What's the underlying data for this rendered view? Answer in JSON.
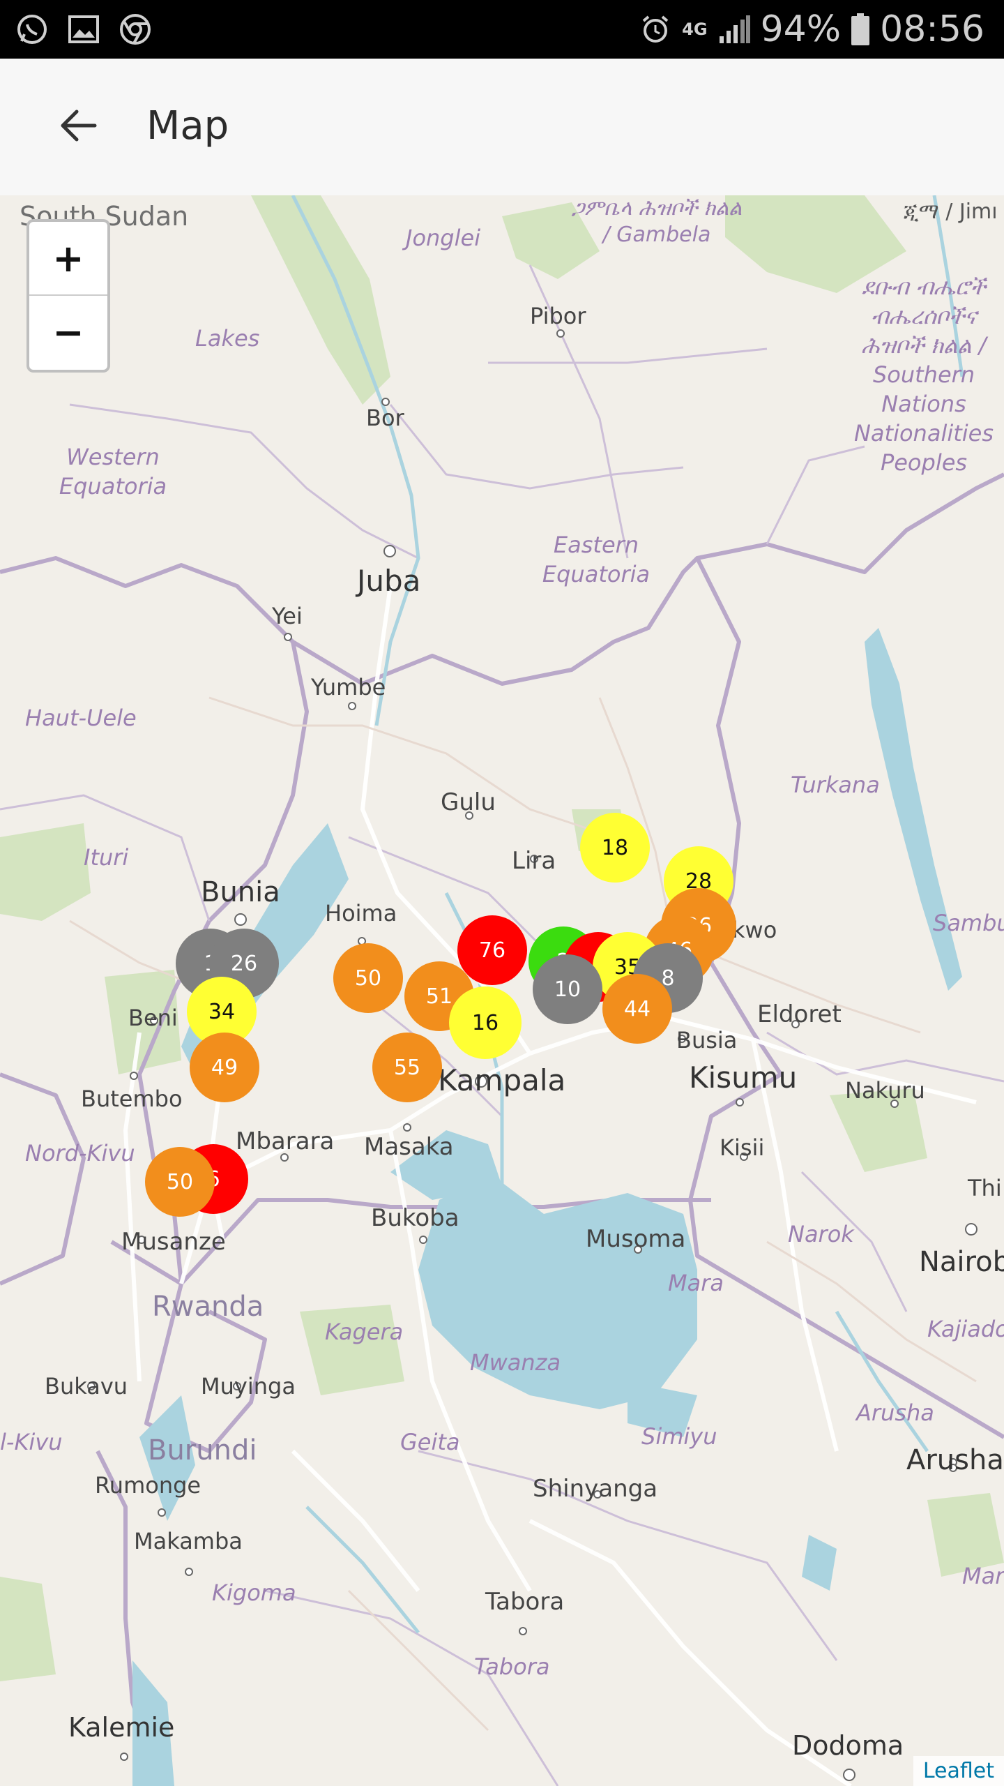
{
  "status_bar": {
    "left_icons": [
      "whatsapp-icon",
      "gallery-icon",
      "chrome-icon"
    ],
    "network": "4G",
    "battery": "94%",
    "time": "08:56"
  },
  "app_bar": {
    "title": "Map",
    "back_icon": "arrow-left-icon"
  },
  "map": {
    "zoom_in_label": "+",
    "zoom_out_label": "−",
    "attribution": "Leaflet",
    "colors": {
      "land": "#f2efe9",
      "water": "#aad3df",
      "forest": "#c8dcb0",
      "border": "#b9a8c9",
      "road": "#ffffff",
      "marker_red": "#ff0000",
      "marker_orange": "#f28e1c",
      "marker_yellow": "#ffff33",
      "marker_green": "#3bdc0f",
      "marker_gray": "#7f7f7f"
    },
    "places": {
      "south_sudan": "South Sudan",
      "gambela": "ጋምቤላ ሕዝቦች ክልል / Gambela",
      "amharic_ji": "ጂማ / Jimı",
      "jonglei": "Jonglei",
      "pibor": "Pibor",
      "snnp": "ደቡብ ብሔሮች ብሔረሰቦችና ሕዝቦች ክልል / Southern Nations Nationalities Peoples",
      "lakes": "Lakes",
      "bor": "Bor",
      "western_equatoria": "Western Equatoria",
      "juba": "Juba",
      "eastern_equatoria": "Eastern Equatoria",
      "yei": "Yei",
      "yumbe": "Yumbe",
      "haut_uele": "Haut-Uele",
      "gulu": "Gulu",
      "turkana": "Turkana",
      "ituri": "Ituri",
      "lira": "Lira",
      "bunia": "Bunia",
      "hoima": "Hoima",
      "kwo": "kwo",
      "sambu": "Sambu",
      "beni": "Beni",
      "eldoret": "Eldoret",
      "busia": "Busia",
      "kisumu": "Kisumu",
      "nakuru": "Nakuru",
      "butembo": "Butembo",
      "kampala": "Kampala",
      "kisii": "Kisii",
      "mbarara": "Mbarara",
      "masaka": "Masaka",
      "nord_kivu": "Nord-Kivu",
      "thi": "Thi",
      "bukoba": "Bukoba",
      "musoma": "Musoma",
      "narok": "Narok",
      "nairobi": "Nairob",
      "musanze": "Musanze",
      "mara": "Mara",
      "rwanda": "Rwanda",
      "kagera": "Kagera",
      "kajiado": "Kajiado",
      "mwanza": "Mwanza",
      "bukavu": "Bukavu",
      "muyinga": "Muyinga",
      "arusha_region": "Arusha",
      "sud_kivu": "l-Kivu",
      "burundi": "Burundi",
      "geita": "Geita",
      "simiyu": "Simiyu",
      "arusha": "Arusha",
      "rumonge": "Rumonge",
      "shinyanga": "Shinyanga",
      "makamba": "Makamba",
      "mar": "Mar",
      "kigoma": "Kigoma",
      "tabora_city": "Tabora",
      "tabora_region": "Tabora",
      "kalemie": "Kalemie",
      "dodoma": "Dodoma"
    },
    "markers": [
      {
        "id": "m18",
        "label": "18",
        "color": "yellow"
      },
      {
        "id": "m28",
        "label": "28",
        "color": "yellow"
      },
      {
        "id": "m36",
        "label": "36",
        "color": "orange"
      },
      {
        "id": "m46",
        "label": "46",
        "color": "orange"
      },
      {
        "id": "m1x",
        "label": "1",
        "color": "gray"
      },
      {
        "id": "m26",
        "label": "26",
        "color": "gray"
      },
      {
        "id": "m50a",
        "label": "50",
        "color": "orange"
      },
      {
        "id": "m76",
        "label": "76",
        "color": "red"
      },
      {
        "id": "m2x",
        "label": "2",
        "color": "green"
      },
      {
        "id": "m6x",
        "label": "6",
        "color": "red"
      },
      {
        "id": "m35",
        "label": "35",
        "color": "yellow"
      },
      {
        "id": "m8",
        "label": "8",
        "color": "gray"
      },
      {
        "id": "m51",
        "label": "51",
        "color": "orange"
      },
      {
        "id": "m10",
        "label": "10",
        "color": "gray"
      },
      {
        "id": "m44",
        "label": "44",
        "color": "orange"
      },
      {
        "id": "m34",
        "label": "34",
        "color": "yellow"
      },
      {
        "id": "m16",
        "label": "16",
        "color": "yellow"
      },
      {
        "id": "m49",
        "label": "49",
        "color": "orange"
      },
      {
        "id": "m55",
        "label": "55",
        "color": "orange"
      },
      {
        "id": "m6b",
        "label": "6",
        "color": "red"
      },
      {
        "id": "m50b",
        "label": "50",
        "color": "orange"
      }
    ]
  }
}
